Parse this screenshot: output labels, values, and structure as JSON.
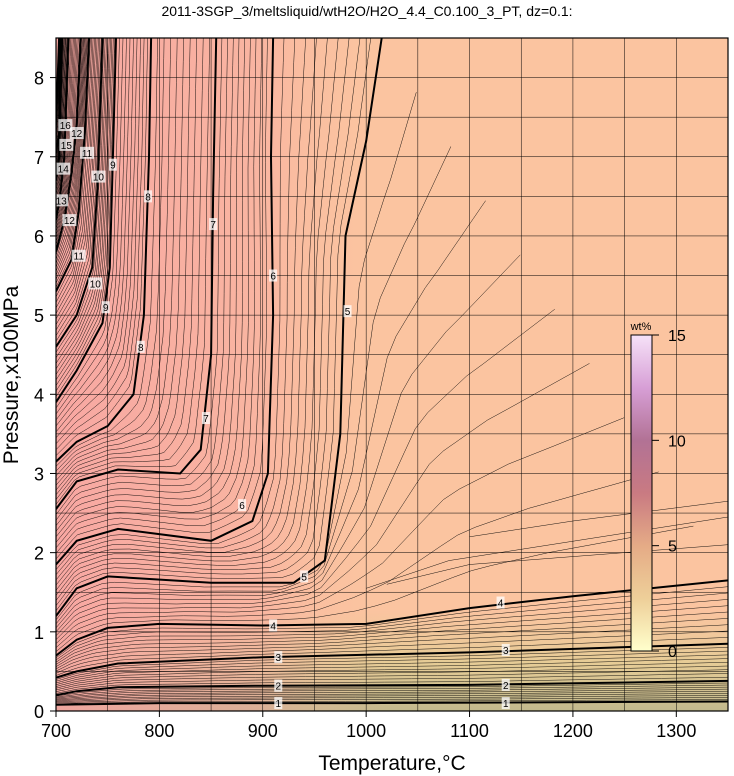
{
  "chart_data": {
    "type": "contour",
    "title": "2011-3SGP_3/meltsliquid/wtH2O/H2O_4.4_C0.100_3_PT, dz=0.1:",
    "xlabel": "Temperature,°C",
    "ylabel": "Pressure,x100MPa",
    "xlim": [
      700,
      1350
    ],
    "ylim": [
      0,
      8.5
    ],
    "x_ticks": [
      700,
      800,
      900,
      1000,
      1100,
      1200,
      1300
    ],
    "y_ticks": [
      0,
      1,
      2,
      3,
      4,
      5,
      6,
      7,
      8
    ],
    "x_tick_labels": [
      "700",
      "800",
      "900",
      "1000",
      "1100",
      "1200",
      "1300"
    ],
    "y_tick_labels": [
      "0",
      "1",
      "2",
      "3",
      "4",
      "5",
      "6",
      "7",
      "8"
    ],
    "grid": true,
    "contour_interval": 0.1,
    "major_contours": [
      {
        "level": 1,
        "label": "1",
        "points": [
          [
            700,
            0.08
          ],
          [
            800,
            0.1
          ],
          [
            1000,
            0.1
          ],
          [
            1350,
            0.12
          ]
        ],
        "label_at": [
          [
            915,
            0.1
          ],
          [
            1135,
            0.1
          ]
        ]
      },
      {
        "level": 2,
        "label": "2",
        "points": [
          [
            700,
            0.2
          ],
          [
            720,
            0.25
          ],
          [
            760,
            0.3
          ],
          [
            900,
            0.32
          ],
          [
            1100,
            0.33
          ],
          [
            1350,
            0.38
          ]
        ],
        "label_at": [
          [
            915,
            0.32
          ],
          [
            1135,
            0.33
          ]
        ]
      },
      {
        "level": 3,
        "label": "3",
        "points": [
          [
            700,
            0.42
          ],
          [
            720,
            0.5
          ],
          [
            760,
            0.6
          ],
          [
            900,
            0.68
          ],
          [
            1100,
            0.74
          ],
          [
            1350,
            0.85
          ]
        ],
        "label_at": [
          [
            915,
            0.68
          ],
          [
            1135,
            0.77
          ]
        ]
      },
      {
        "level": 4,
        "label": "4",
        "points": [
          [
            700,
            0.7
          ],
          [
            720,
            0.9
          ],
          [
            750,
            1.05
          ],
          [
            800,
            1.1
          ],
          [
            900,
            1.08
          ],
          [
            1000,
            1.1
          ],
          [
            1100,
            1.3
          ],
          [
            1200,
            1.45
          ],
          [
            1350,
            1.65
          ]
        ],
        "label_at": [
          [
            910,
            1.08
          ],
          [
            1130,
            1.37
          ]
        ]
      },
      {
        "level": 5,
        "label": "5",
        "points": [
          [
            700,
            1.2
          ],
          [
            720,
            1.55
          ],
          [
            750,
            1.7
          ],
          [
            850,
            1.62
          ],
          [
            930,
            1.62
          ],
          [
            960,
            1.9
          ],
          [
            975,
            3.5
          ],
          [
            980,
            6.0
          ],
          [
            1000,
            7.2
          ],
          [
            1015,
            8.5
          ]
        ],
        "label_at": [
          [
            940,
            1.7
          ],
          [
            982,
            5.05
          ]
        ]
      },
      {
        "level": 6,
        "label": "6",
        "points": [
          [
            700,
            1.85
          ],
          [
            720,
            2.15
          ],
          [
            760,
            2.3
          ],
          [
            850,
            2.15
          ],
          [
            890,
            2.4
          ],
          [
            905,
            3.0
          ],
          [
            910,
            5.0
          ],
          [
            908,
            7.0
          ],
          [
            910,
            8.5
          ]
        ],
        "label_at": [
          [
            880,
            2.6
          ],
          [
            910,
            5.5
          ]
        ]
      },
      {
        "level": 7,
        "label": "7",
        "points": [
          [
            700,
            2.55
          ],
          [
            720,
            2.9
          ],
          [
            760,
            3.05
          ],
          [
            820,
            3.0
          ],
          [
            840,
            3.3
          ],
          [
            850,
            4.5
          ],
          [
            852,
            6.5
          ],
          [
            855,
            8.5
          ]
        ],
        "label_at": [
          [
            845,
            3.7
          ],
          [
            852,
            6.15
          ]
        ]
      },
      {
        "level": 8,
        "label": "8",
        "points": [
          [
            700,
            3.15
          ],
          [
            720,
            3.4
          ],
          [
            750,
            3.6
          ],
          [
            775,
            4.0
          ],
          [
            785,
            5.0
          ],
          [
            790,
            7.0
          ],
          [
            792,
            8.5
          ]
        ],
        "label_at": [
          [
            782,
            4.6
          ],
          [
            789,
            6.5
          ]
        ]
      },
      {
        "level": 9,
        "label": "9",
        "points": [
          [
            700,
            3.9
          ],
          [
            720,
            4.3
          ],
          [
            745,
            4.9
          ],
          [
            752,
            5.6
          ],
          [
            755,
            7.0
          ],
          [
            758,
            8.5
          ]
        ],
        "label_at": [
          [
            748,
            5.1
          ],
          [
            755,
            6.9
          ]
        ]
      },
      {
        "level": 10,
        "label": "10",
        "points": [
          [
            700,
            4.6
          ],
          [
            720,
            5.0
          ],
          [
            735,
            5.6
          ],
          [
            740,
            6.6
          ],
          [
            745,
            8.5
          ]
        ],
        "label_at": [
          [
            738,
            5.4
          ],
          [
            741,
            6.75
          ]
        ]
      },
      {
        "level": 11,
        "label": "11",
        "points": [
          [
            700,
            5.3
          ],
          [
            715,
            5.7
          ],
          [
            722,
            6.3
          ],
          [
            728,
            7.3
          ],
          [
            732,
            8.5
          ]
        ],
        "label_at": [
          [
            722,
            5.75
          ],
          [
            730,
            7.05
          ]
        ]
      },
      {
        "level": 12,
        "label": "12",
        "points": [
          [
            700,
            5.8
          ],
          [
            708,
            6.2
          ],
          [
            715,
            6.8
          ],
          [
            720,
            7.4
          ],
          [
            724,
            8.5
          ]
        ],
        "label_at": [
          [
            713,
            6.2
          ],
          [
            720,
            7.3
          ]
        ]
      },
      {
        "level": 13,
        "label": "13",
        "points": [
          [
            700,
            6.2
          ],
          [
            704,
            6.5
          ],
          [
            708,
            7.0
          ],
          [
            712,
            8.5
          ]
        ],
        "label_at": [
          [
            705,
            6.45
          ]
        ]
      },
      {
        "level": 14,
        "label": "14",
        "points": [
          [
            700,
            6.7
          ],
          [
            703,
            7.0
          ],
          [
            706,
            8.5
          ]
        ],
        "label_at": [
          [
            707,
            6.85
          ]
        ]
      },
      {
        "level": 15,
        "label": "15",
        "points": [
          [
            700,
            7.05
          ],
          [
            703,
            7.3
          ],
          [
            704,
            8.5
          ]
        ],
        "label_at": [
          [
            710,
            7.15
          ]
        ]
      },
      {
        "level": 16,
        "label": "16",
        "points": [
          [
            700,
            7.4
          ],
          [
            703,
            8.5
          ]
        ],
        "label_at": [
          [
            709,
            7.4
          ]
        ]
      }
    ],
    "colorbar": {
      "label": "wt%",
      "range": [
        0,
        15
      ],
      "ticks": [
        0,
        5,
        10,
        15
      ],
      "tick_labels": [
        "0",
        "5",
        "10",
        "15"
      ],
      "colors": [
        "#ffffcc",
        "#eecf99",
        "#e5ab86",
        "#c97a82",
        "#b27295",
        "#d79fd6",
        "#f6e2f8"
      ]
    },
    "field_colors": {
      "low": "#c2b98d",
      "mid": "#fbc4a0",
      "high": "#f7a2a2"
    }
  }
}
